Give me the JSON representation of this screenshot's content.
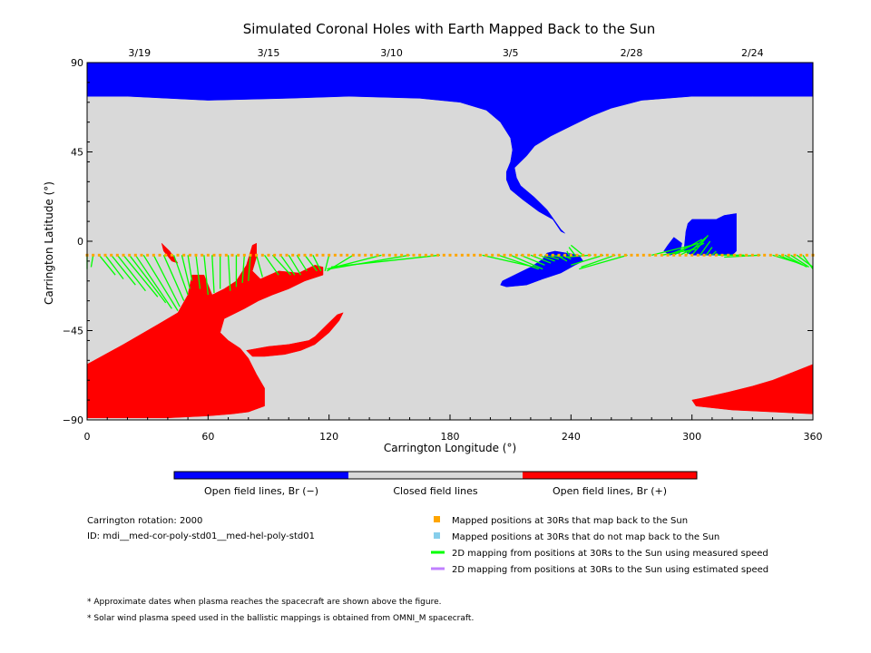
{
  "chart_data": {
    "type": "heatmap",
    "title": "Simulated Coronal Holes with Earth Mapped Back to the Sun",
    "xlabel": "Carrington Longitude (°)",
    "ylabel": "Carrington Latitude (°)",
    "xlim": [
      0,
      360
    ],
    "ylim": [
      -90,
      90
    ],
    "x_ticks": [
      0,
      60,
      120,
      180,
      240,
      300,
      360
    ],
    "y_ticks": [
      90,
      45,
      0,
      -45,
      -90
    ],
    "x_tick_labels": [
      "0",
      "60",
      "120",
      "180",
      "240",
      "300",
      "360"
    ],
    "y_tick_labels": [
      "90",
      "45",
      "0",
      "−45",
      "−90"
    ],
    "top_axis": {
      "ticks": [
        {
          "lon": 26,
          "label": "3/19"
        },
        {
          "lon": 90,
          "label": "3/15"
        },
        {
          "lon": 151,
          "label": "3/10"
        },
        {
          "lon": 210,
          "label": "3/5"
        },
        {
          "lon": 270,
          "label": "2/28"
        },
        {
          "lon": 330,
          "label": "2/24"
        }
      ]
    },
    "colors": {
      "open_negative": "#0000ff",
      "closed": "#d9d9d9",
      "open_positive": "#ff0000",
      "mapped_back": "#ffa500",
      "not_mapped": "#87ceeb",
      "measured_speed": "#00ff00",
      "estimated_speed": "#c080ff"
    },
    "regions": [
      {
        "name": "Open field lines, Br (−)",
        "polarity": "negative",
        "polygons": [
          [
            [
              0,
              90
            ],
            [
              360,
              90
            ],
            [
              360,
              73
            ],
            [
              330,
              73
            ],
            [
              300,
              73
            ],
            [
              275,
              71
            ],
            [
              260,
              67
            ],
            [
              250,
              63
            ],
            [
              240,
              58
            ],
            [
              230,
              53
            ],
            [
              222,
              48
            ],
            [
              218,
              43
            ],
            [
              215,
              40
            ],
            [
              212,
              37
            ],
            [
              213,
              32
            ],
            [
              215,
              28
            ],
            [
              222,
              22
            ],
            [
              228,
              16
            ],
            [
              235,
              6
            ],
            [
              237,
              4
            ],
            [
              235,
              5
            ],
            [
              231,
              11
            ],
            [
              224,
              15
            ],
            [
              216,
              21
            ],
            [
              210,
              26
            ],
            [
              208,
              31
            ],
            [
              208,
              35
            ],
            [
              210,
              40
            ],
            [
              211,
              46
            ],
            [
              210,
              52
            ],
            [
              205,
              60
            ],
            [
              198,
              66
            ],
            [
              185,
              70
            ],
            [
              165,
              72
            ],
            [
              130,
              73
            ],
            [
              100,
              72
            ],
            [
              60,
              71
            ],
            [
              20,
              73
            ],
            [
              0,
              73
            ]
          ],
          [
            [
              238,
              -6
            ],
            [
              232,
              -5
            ],
            [
              228,
              -6
            ],
            [
              226,
              -9
            ],
            [
              220,
              -13
            ],
            [
              214,
              -16
            ],
            [
              206,
              -20
            ],
            [
              205,
              -22
            ],
            [
              208,
              -23
            ],
            [
              218,
              -22
            ],
            [
              226,
              -19
            ],
            [
              235,
              -16
            ],
            [
              242,
              -12
            ],
            [
              246,
              -10
            ],
            [
              244,
              -7
            ]
          ],
          [
            [
              297,
              5
            ],
            [
              296,
              -5
            ],
            [
              300,
              -7
            ],
            [
              315,
              -7
            ],
            [
              320,
              -7
            ],
            [
              322,
              -5
            ],
            [
              322,
              8
            ],
            [
              322,
              14
            ],
            [
              316,
              13
            ],
            [
              312,
              11
            ],
            [
              305,
              11
            ],
            [
              300,
              11
            ],
            [
              298,
              9
            ]
          ],
          [
            [
              291,
              2
            ],
            [
              295,
              -1
            ],
            [
              294,
              -6
            ],
            [
              289,
              -7
            ],
            [
              286,
              -5
            ],
            [
              288,
              -2
            ]
          ]
        ]
      },
      {
        "name": "Open field lines, Br (+)",
        "polarity": "positive",
        "polygons": [
          [
            [
              0,
              -62
            ],
            [
              18,
              -52
            ],
            [
              35,
              -42
            ],
            [
              45,
              -36
            ],
            [
              50,
              -27
            ],
            [
              52,
              -17
            ],
            [
              58,
              -17
            ],
            [
              62,
              -27
            ],
            [
              68,
              -24
            ],
            [
              74,
              -20
            ],
            [
              79,
              -12
            ],
            [
              82,
              -2
            ],
            [
              84,
              -1
            ],
            [
              84,
              -8
            ],
            [
              82,
              -15
            ],
            [
              86,
              -19
            ],
            [
              95,
              -15
            ],
            [
              105,
              -16
            ],
            [
              113,
              -12
            ],
            [
              117,
              -13
            ],
            [
              117,
              -17
            ],
            [
              108,
              -20
            ],
            [
              100,
              -24
            ],
            [
              92,
              -27
            ],
            [
              85,
              -30
            ],
            [
              78,
              -34
            ],
            [
              68,
              -39
            ],
            [
              66,
              -46
            ],
            [
              70,
              -50
            ],
            [
              76,
              -54
            ],
            [
              80,
              -59
            ],
            [
              84,
              -67
            ],
            [
              88,
              -74
            ],
            [
              88,
              -83
            ],
            [
              80,
              -86
            ],
            [
              72,
              -87
            ],
            [
              60,
              -88
            ],
            [
              40,
              -89
            ],
            [
              20,
              -89
            ],
            [
              0,
              -89
            ]
          ],
          [
            [
              360,
              -62
            ],
            [
              350,
              -66
            ],
            [
              340,
              -70
            ],
            [
              330,
              -73
            ],
            [
              318,
              -76
            ],
            [
              305,
              -79
            ],
            [
              300,
              -80
            ],
            [
              302,
              -83
            ],
            [
              320,
              -85
            ],
            [
              340,
              -86
            ],
            [
              360,
              -87
            ]
          ],
          [
            [
              79,
              -55
            ],
            [
              90,
              -53
            ],
            [
              100,
              -52
            ],
            [
              110,
              -50
            ],
            [
              113,
              -48
            ],
            [
              119,
              -42
            ],
            [
              124,
              -37
            ],
            [
              127,
              -36
            ],
            [
              125,
              -40
            ],
            [
              120,
              -46
            ],
            [
              113,
              -52
            ],
            [
              106,
              -55
            ],
            [
              98,
              -57
            ],
            [
              88,
              -58
            ],
            [
              82,
              -58
            ]
          ],
          [
            [
              37,
              -1
            ],
            [
              41,
              -5
            ],
            [
              45,
              -11
            ],
            [
              42,
              -10
            ],
            [
              38,
              -5
            ]
          ]
        ]
      }
    ],
    "footpoints": {
      "latitude": -7,
      "measured_speed_lines": [
        {
          "start_lon": 0,
          "end_lon": 0,
          "end_lat": -14
        },
        {
          "start_lon": 3,
          "end_lon": 2,
          "end_lat": -13
        },
        {
          "start_lon": 6,
          "end_lon": 14,
          "end_lat": -17
        },
        {
          "start_lon": 9,
          "end_lon": 18,
          "end_lat": -19
        },
        {
          "start_lon": 12,
          "end_lon": 24,
          "end_lat": -22
        },
        {
          "start_lon": 15,
          "end_lon": 29,
          "end_lat": -25
        },
        {
          "start_lon": 18,
          "end_lon": 35,
          "end_lat": -28
        },
        {
          "start_lon": 21,
          "end_lon": 39,
          "end_lat": -31
        },
        {
          "start_lon": 24,
          "end_lon": 42,
          "end_lat": -34
        },
        {
          "start_lon": 28,
          "end_lon": 45,
          "end_lat": -35
        },
        {
          "start_lon": 33,
          "end_lon": 46,
          "end_lat": -33
        },
        {
          "start_lon": 38,
          "end_lon": 48,
          "end_lat": -30
        },
        {
          "start_lon": 43,
          "end_lon": 50,
          "end_lat": -27
        },
        {
          "start_lon": 47,
          "end_lon": 51,
          "end_lat": -24
        },
        {
          "start_lon": 50,
          "end_lon": 52,
          "end_lat": -20
        },
        {
          "start_lon": 54,
          "end_lon": 56,
          "end_lat": -24
        },
        {
          "start_lon": 58,
          "end_lon": 60,
          "end_lat": -27
        },
        {
          "start_lon": 62,
          "end_lon": 63,
          "end_lat": -26
        },
        {
          "start_lon": 66,
          "end_lon": 66,
          "end_lat": -24
        },
        {
          "start_lon": 70,
          "end_lon": 71,
          "end_lat": -25
        },
        {
          "start_lon": 74,
          "end_lon": 74,
          "end_lat": -23
        },
        {
          "start_lon": 78,
          "end_lon": 77,
          "end_lat": -21
        },
        {
          "start_lon": 81,
          "end_lon": 80,
          "end_lat": -20
        },
        {
          "start_lon": 84,
          "end_lon": 87,
          "end_lat": -18
        },
        {
          "start_lon": 88,
          "end_lon": 95,
          "end_lat": -17
        },
        {
          "start_lon": 92,
          "end_lon": 101,
          "end_lat": -17
        },
        {
          "start_lon": 96,
          "end_lon": 103,
          "end_lat": -17
        },
        {
          "start_lon": 100,
          "end_lon": 106,
          "end_lat": -17
        },
        {
          "start_lon": 104,
          "end_lon": 109,
          "end_lat": -15
        },
        {
          "start_lon": 108,
          "end_lon": 114,
          "end_lat": -15
        },
        {
          "start_lon": 112,
          "end_lon": 116,
          "end_lat": -15
        },
        {
          "start_lon": 120,
          "end_lon": 118,
          "end_lat": -15
        },
        {
          "start_lon": 132,
          "end_lon": 119,
          "end_lat": -15
        },
        {
          "start_lon": 146,
          "end_lon": 119,
          "end_lat": -14
        },
        {
          "start_lon": 160,
          "end_lon": 120,
          "end_lat": -14
        },
        {
          "start_lon": 175,
          "end_lon": 121,
          "end_lat": -13
        },
        {
          "start_lon": 196,
          "end_lon": 222,
          "end_lat": -13
        },
        {
          "start_lon": 204,
          "end_lon": 224,
          "end_lat": -14
        },
        {
          "start_lon": 210,
          "end_lon": 226,
          "end_lat": -14
        },
        {
          "start_lon": 215,
          "end_lon": 227,
          "end_lat": -12
        },
        {
          "start_lon": 220,
          "end_lon": 230,
          "end_lat": -11
        },
        {
          "start_lon": 224,
          "end_lon": 232,
          "end_lat": -10
        },
        {
          "start_lon": 227,
          "end_lon": 234,
          "end_lat": -9
        },
        {
          "start_lon": 230,
          "end_lon": 236,
          "end_lat": -8
        },
        {
          "start_lon": 233,
          "end_lon": 238,
          "end_lat": -10
        },
        {
          "start_lon": 236,
          "end_lon": 240,
          "end_lat": -9
        },
        {
          "start_lon": 239,
          "end_lon": 238,
          "end_lat": -5
        },
        {
          "start_lon": 242,
          "end_lon": 239,
          "end_lat": -3
        },
        {
          "start_lon": 246,
          "end_lon": 240,
          "end_lat": -2
        },
        {
          "start_lon": 250,
          "end_lon": 237,
          "end_lat": -8
        },
        {
          "start_lon": 256,
          "end_lon": 240,
          "end_lat": -12
        },
        {
          "start_lon": 262,
          "end_lon": 245,
          "end_lat": -13
        },
        {
          "start_lon": 268,
          "end_lon": 244,
          "end_lat": -14
        },
        {
          "start_lon": 280,
          "end_lon": 300,
          "end_lat": -2
        },
        {
          "start_lon": 285,
          "end_lon": 302,
          "end_lat": -4
        },
        {
          "start_lon": 288,
          "end_lon": 303,
          "end_lat": -1
        },
        {
          "start_lon": 291,
          "end_lon": 305,
          "end_lat": 1
        },
        {
          "start_lon": 294,
          "end_lon": 306,
          "end_lat": -1
        },
        {
          "start_lon": 297,
          "end_lon": 307,
          "end_lat": 2
        },
        {
          "start_lon": 300,
          "end_lon": 308,
          "end_lat": 3
        },
        {
          "start_lon": 304,
          "end_lon": 309,
          "end_lat": 0
        },
        {
          "start_lon": 307,
          "end_lon": 310,
          "end_lat": -3
        },
        {
          "start_lon": 310,
          "end_lon": 312,
          "end_lat": -5
        },
        {
          "start_lon": 313,
          "end_lon": 312,
          "end_lat": -6
        },
        {
          "start_lon": 316,
          "end_lon": 313,
          "end_lat": -7
        },
        {
          "start_lon": 320,
          "end_lon": 314,
          "end_lat": -7
        },
        {
          "start_lon": 326,
          "end_lon": 315,
          "end_lat": -7
        },
        {
          "start_lon": 334,
          "end_lon": 316,
          "end_lat": -8
        },
        {
          "start_lon": 340,
          "end_lon": 353,
          "end_lat": -11
        },
        {
          "start_lon": 343,
          "end_lon": 355,
          "end_lat": -12
        },
        {
          "start_lon": 346,
          "end_lon": 357,
          "end_lat": -13
        },
        {
          "start_lon": 349,
          "end_lon": 358,
          "end_lat": -13
        },
        {
          "start_lon": 352,
          "end_lon": 360,
          "end_lat": -13
        },
        {
          "start_lon": 355,
          "end_lon": 360,
          "end_lat": -14
        }
      ]
    },
    "colorbar": [
      {
        "label": "Open field lines, Br (−)",
        "color": "#0000ff"
      },
      {
        "label": "Closed field lines",
        "color": "#d9d9d9"
      },
      {
        "label": "Open field lines, Br (+)",
        "color": "#ff0000"
      }
    ],
    "legend": [
      {
        "label": "Mapped positions at 30Rs that map back to the Sun",
        "marker": "square",
        "color": "#ffa500"
      },
      {
        "label": "Mapped positions at 30Rs that do not map back to the Sun",
        "marker": "square",
        "color": "#87ceeb"
      },
      {
        "label": "2D mapping from positions at 30Rs to the Sun using measured speed",
        "marker": "line",
        "color": "#00ff00"
      },
      {
        "label": "2D mapping from positions at 30Rs to the Sun using estimated speed",
        "marker": "line",
        "color": "#c080ff"
      }
    ]
  },
  "info": {
    "rotation": "Carrington rotation: 2000",
    "id": "ID: mdi__med-cor-poly-std01__med-hel-poly-std01"
  },
  "footnotes": [
    "* Approximate dates when plasma reaches the spacecraft are shown above the figure.",
    "* Solar wind plasma speed used in the ballistic mappings is obtained from OMNI_M spacecraft."
  ]
}
